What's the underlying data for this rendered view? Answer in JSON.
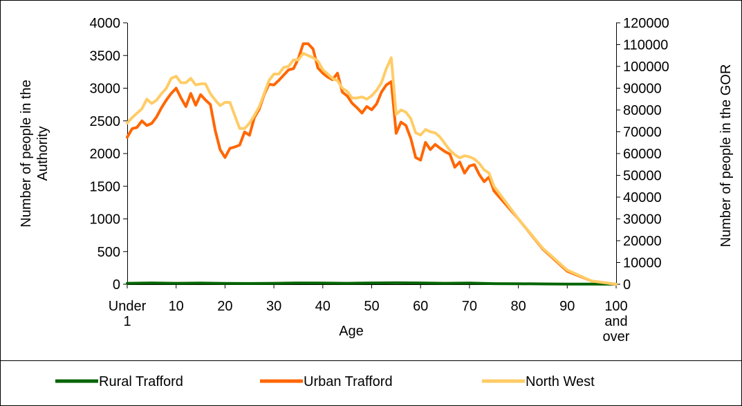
{
  "chart_data": {
    "type": "line",
    "xlabel": "Age",
    "ylabel_left": "Number of people in the Authority",
    "ylabel_right": "Number of people in the GOR",
    "ylim_left": [
      0,
      4000
    ],
    "ylim_right": [
      0,
      120000
    ],
    "yticks_left": [
      "0",
      "500",
      "1000",
      "1500",
      "2000",
      "2500",
      "3000",
      "3500",
      "4000"
    ],
    "yticks_right": [
      "0",
      "10000",
      "20000",
      "30000",
      "40000",
      "50000",
      "60000",
      "70000",
      "80000",
      "90000",
      "100000",
      "110000",
      "120000"
    ],
    "xtick_labels": [
      {
        "age": 0,
        "lines": [
          "Under",
          "1"
        ]
      },
      {
        "age": 10,
        "lines": [
          "10"
        ]
      },
      {
        "age": 20,
        "lines": [
          "20"
        ]
      },
      {
        "age": 30,
        "lines": [
          "30"
        ]
      },
      {
        "age": 40,
        "lines": [
          "40"
        ]
      },
      {
        "age": 50,
        "lines": [
          "50"
        ]
      },
      {
        "age": 60,
        "lines": [
          "60"
        ]
      },
      {
        "age": 70,
        "lines": [
          "70"
        ]
      },
      {
        "age": 80,
        "lines": [
          "80"
        ]
      },
      {
        "age": 90,
        "lines": [
          "90"
        ]
      },
      {
        "age": 100,
        "lines": [
          "100",
          "and",
          "over"
        ]
      }
    ],
    "legend_position": "bottom",
    "grid": false,
    "series": [
      {
        "name": "Rural Trafford",
        "axis": "left",
        "color": "#006400",
        "x": [
          0,
          5,
          10,
          15,
          20,
          25,
          30,
          35,
          40,
          45,
          50,
          55,
          60,
          65,
          70,
          75,
          80,
          85,
          90,
          95,
          100
        ],
        "y": [
          15,
          20,
          15,
          18,
          14,
          12,
          15,
          20,
          18,
          15,
          20,
          22,
          20,
          15,
          18,
          10,
          8,
          5,
          3,
          2,
          1
        ]
      },
      {
        "name": "Urban Trafford",
        "axis": "left",
        "color": "#FF6600",
        "x": [
          0,
          1,
          2,
          3,
          4,
          5,
          6,
          7,
          8,
          9,
          10,
          11,
          12,
          13,
          14,
          15,
          16,
          17,
          18,
          19,
          20,
          21,
          22,
          23,
          24,
          25,
          26,
          27,
          28,
          29,
          30,
          31,
          32,
          33,
          34,
          35,
          36,
          37,
          38,
          39,
          40,
          41,
          42,
          43,
          44,
          45,
          46,
          47,
          48,
          49,
          50,
          51,
          52,
          53,
          54,
          55,
          56,
          57,
          58,
          59,
          60,
          61,
          62,
          63,
          64,
          65,
          66,
          67,
          68,
          69,
          70,
          71,
          72,
          73,
          74,
          75,
          80,
          85,
          90,
          95,
          100
        ],
        "y": [
          2250,
          2380,
          2400,
          2500,
          2430,
          2460,
          2560,
          2700,
          2820,
          2920,
          3000,
          2850,
          2720,
          2920,
          2740,
          2900,
          2820,
          2750,
          2350,
          2060,
          1940,
          2080,
          2100,
          2130,
          2330,
          2280,
          2550,
          2680,
          2900,
          3060,
          3050,
          3120,
          3200,
          3280,
          3300,
          3450,
          3680,
          3680,
          3600,
          3310,
          3230,
          3170,
          3130,
          3230,
          2940,
          2880,
          2770,
          2700,
          2620,
          2720,
          2670,
          2760,
          2940,
          3050,
          3100,
          2310,
          2480,
          2430,
          2230,
          1940,
          1900,
          2170,
          2060,
          2140,
          2080,
          2030,
          1990,
          1790,
          1870,
          1700,
          1810,
          1830,
          1680,
          1570,
          1640,
          1430,
          1000,
          540,
          200,
          50,
          0
        ]
      },
      {
        "name": "North West",
        "axis": "right",
        "color": "#FFCC66",
        "x": [
          0,
          1,
          2,
          3,
          4,
          5,
          6,
          7,
          8,
          9,
          10,
          11,
          12,
          13,
          14,
          15,
          16,
          17,
          18,
          19,
          20,
          21,
          22,
          23,
          24,
          25,
          26,
          27,
          28,
          29,
          30,
          31,
          32,
          33,
          34,
          35,
          36,
          37,
          38,
          39,
          40,
          41,
          42,
          43,
          44,
          45,
          46,
          47,
          48,
          49,
          50,
          51,
          52,
          53,
          54,
          55,
          56,
          57,
          58,
          59,
          60,
          61,
          62,
          63,
          64,
          65,
          66,
          67,
          68,
          69,
          70,
          71,
          72,
          73,
          74,
          75,
          80,
          85,
          90,
          95,
          100
        ],
        "y": [
          74000,
          76500,
          78500,
          80500,
          85000,
          83000,
          84500,
          87500,
          90000,
          94500,
          95500,
          92500,
          92500,
          94500,
          91500,
          92000,
          92000,
          87500,
          84500,
          82000,
          83500,
          83500,
          77500,
          71500,
          71500,
          74000,
          77500,
          81500,
          87500,
          93500,
          96500,
          96500,
          99500,
          100000,
          103000,
          103000,
          106000,
          105000,
          104000,
          102500,
          98500,
          96500,
          94500,
          93500,
          90000,
          88500,
          85500,
          85500,
          86000,
          85000,
          86500,
          89000,
          92500,
          99000,
          104000,
          78000,
          80000,
          79000,
          76000,
          69500,
          68500,
          71000,
          70000,
          69500,
          67500,
          64500,
          61500,
          59500,
          58000,
          59000,
          58500,
          57500,
          55500,
          52500,
          51000,
          45000,
          30000,
          16500,
          6500,
          1500,
          0
        ]
      }
    ]
  }
}
